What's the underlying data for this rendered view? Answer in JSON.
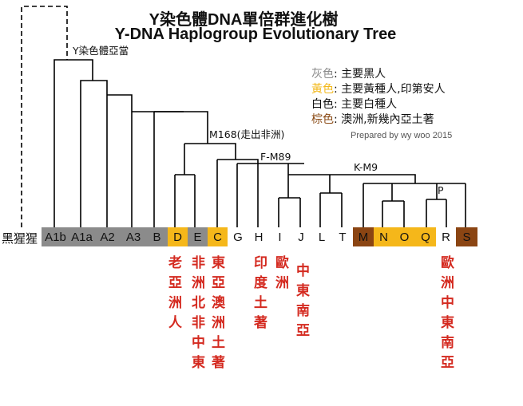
{
  "title": {
    "line1": "Y染色體DNA單倍群進化樹",
    "line2": "Y-DNA Haplogroup Evolutionary Tree"
  },
  "legend": [
    {
      "key": "灰色",
      "sep": ": ",
      "desc": "主要黑人",
      "color": "#8a8a8a"
    },
    {
      "key": "黃色",
      "sep": ": ",
      "desc": "主要黃種人,印第安人",
      "color": "#f3b81a"
    },
    {
      "key": "白色",
      "sep": ": ",
      "desc": "主要白種人",
      "color": "#111111"
    },
    {
      "key": "棕色",
      "sep": ": ",
      "desc": "澳洲,新幾內亞土著",
      "color": "#8b4b16"
    }
  ],
  "credit": "Prepared by wy woo 2015",
  "node_labels": {
    "y_adam": "Y染色體亞當",
    "m168": "M168(走出非洲)",
    "f_m89": "F-M89",
    "k_m9": "K-M9",
    "p": "P"
  },
  "outgroup": "黑猩猩",
  "colors": {
    "gray": "#8b8b8b",
    "yellow": "#f5b71a",
    "white": "#ffffff",
    "brown": "#8b4513"
  },
  "haplogroups": [
    {
      "label": "A1b",
      "color": "gray"
    },
    {
      "label": "A1a",
      "color": "gray"
    },
    {
      "label": "A2",
      "color": "gray"
    },
    {
      "label": "A3",
      "color": "gray"
    },
    {
      "label": "B",
      "color": "gray"
    },
    {
      "label": "D",
      "color": "yellow"
    },
    {
      "label": "E",
      "color": "gray"
    },
    {
      "label": "C",
      "color": "yellow"
    },
    {
      "label": "G",
      "color": "white"
    },
    {
      "label": "H",
      "color": "white"
    },
    {
      "label": "I",
      "color": "white"
    },
    {
      "label": "J",
      "color": "white"
    },
    {
      "label": "L",
      "color": "white"
    },
    {
      "label": "T",
      "color": "white"
    },
    {
      "label": "M",
      "color": "brown"
    },
    {
      "label": "N",
      "color": "yellow"
    },
    {
      "label": "O",
      "color": "yellow"
    },
    {
      "label": "Q",
      "color": "yellow"
    },
    {
      "label": "R",
      "color": "white"
    },
    {
      "label": "S",
      "color": "brown"
    }
  ],
  "regions": [
    {
      "text": "老亞洲人"
    },
    {
      "text": "非洲北非中東"
    },
    {
      "text": "東亞澳洲土著"
    },
    {
      "text": "印度土著"
    },
    {
      "text": "歐洲"
    },
    {
      "text": "中東南亞"
    },
    {
      "text": "歐洲中東南亞"
    }
  ]
}
